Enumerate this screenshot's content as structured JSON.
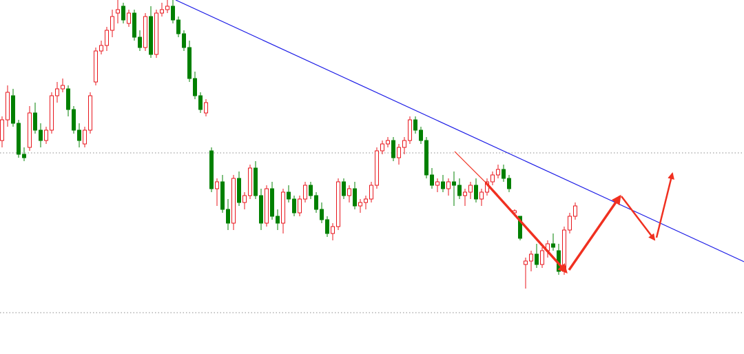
{
  "chart_data": {
    "type": "candlestick",
    "ylim": [
      0,
      514
    ],
    "up_color": "#e8141b",
    "down_color": "#008000",
    "hlines": [
      292,
      60
    ],
    "candles": [
      [
        310,
        345,
        300,
        340
      ],
      [
        340,
        390,
        330,
        380
      ],
      [
        375,
        385,
        330,
        335
      ],
      [
        335,
        340,
        285,
        290
      ],
      [
        290,
        300,
        280,
        285
      ],
      [
        300,
        360,
        295,
        350
      ],
      [
        350,
        365,
        320,
        325
      ],
      [
        325,
        335,
        300,
        310
      ],
      [
        310,
        330,
        305,
        325
      ],
      [
        325,
        380,
        320,
        375
      ],
      [
        375,
        395,
        365,
        385
      ],
      [
        385,
        400,
        380,
        390
      ],
      [
        385,
        390,
        345,
        355
      ],
      [
        355,
        360,
        320,
        325
      ],
      [
        325,
        335,
        300,
        310
      ],
      [
        305,
        330,
        300,
        325
      ],
      [
        325,
        380,
        320,
        375
      ],
      [
        395,
        445,
        390,
        440
      ],
      [
        440,
        455,
        435,
        448
      ],
      [
        448,
        475,
        440,
        470
      ],
      [
        470,
        500,
        460,
        490
      ],
      [
        495,
        514,
        480,
        500
      ],
      [
        505,
        510,
        480,
        485
      ],
      [
        480,
        500,
        475,
        495
      ],
      [
        495,
        500,
        455,
        460
      ],
      [
        460,
        470,
        440,
        445
      ],
      [
        445,
        495,
        440,
        490
      ],
      [
        490,
        505,
        430,
        435
      ],
      [
        435,
        500,
        430,
        495
      ],
      [
        495,
        510,
        490,
        500
      ],
      [
        500,
        514,
        495,
        505
      ],
      [
        505,
        514,
        480,
        485
      ],
      [
        485,
        490,
        460,
        465
      ],
      [
        465,
        470,
        440,
        445
      ],
      [
        445,
        455,
        395,
        400
      ],
      [
        400,
        410,
        370,
        375
      ],
      [
        375,
        380,
        350,
        355
      ],
      [
        350,
        370,
        345,
        365
      ],
      [
        295,
        300,
        235,
        240
      ],
      [
        240,
        255,
        215,
        250
      ],
      [
        250,
        260,
        205,
        210
      ],
      [
        210,
        225,
        180,
        190
      ],
      [
        190,
        260,
        180,
        255
      ],
      [
        255,
        265,
        215,
        220
      ],
      [
        220,
        235,
        210,
        230
      ],
      [
        230,
        275,
        225,
        270
      ],
      [
        270,
        280,
        225,
        230
      ],
      [
        230,
        240,
        180,
        190
      ],
      [
        190,
        245,
        185,
        240
      ],
      [
        240,
        250,
        195,
        200
      ],
      [
        200,
        210,
        180,
        190
      ],
      [
        190,
        240,
        175,
        235
      ],
      [
        235,
        245,
        220,
        225
      ],
      [
        225,
        230,
        200,
        205
      ],
      [
        205,
        230,
        200,
        225
      ],
      [
        225,
        250,
        220,
        245
      ],
      [
        245,
        250,
        225,
        230
      ],
      [
        230,
        235,
        205,
        210
      ],
      [
        210,
        220,
        190,
        195
      ],
      [
        195,
        200,
        170,
        175
      ],
      [
        175,
        190,
        165,
        185
      ],
      [
        185,
        255,
        180,
        250
      ],
      [
        250,
        255,
        225,
        230
      ],
      [
        230,
        245,
        220,
        240
      ],
      [
        240,
        250,
        210,
        215
      ],
      [
        215,
        225,
        205,
        220
      ],
      [
        220,
        230,
        210,
        225
      ],
      [
        225,
        250,
        220,
        245
      ],
      [
        245,
        300,
        240,
        295
      ],
      [
        295,
        310,
        290,
        305
      ],
      [
        305,
        315,
        300,
        310
      ],
      [
        310,
        315,
        280,
        285
      ],
      [
        285,
        305,
        275,
        300
      ],
      [
        300,
        315,
        290,
        310
      ],
      [
        310,
        345,
        305,
        340
      ],
      [
        340,
        345,
        320,
        325
      ],
      [
        325,
        330,
        305,
        310
      ],
      [
        310,
        315,
        255,
        260
      ],
      [
        260,
        270,
        240,
        245
      ],
      [
        245,
        255,
        235,
        250
      ],
      [
        250,
        260,
        235,
        240
      ],
      [
        240,
        255,
        230,
        250
      ],
      [
        250,
        265,
        215,
        245
      ],
      [
        245,
        255,
        225,
        230
      ],
      [
        230,
        240,
        215,
        235
      ],
      [
        235,
        250,
        225,
        245
      ],
      [
        245,
        255,
        220,
        225
      ],
      [
        225,
        240,
        215,
        235
      ],
      [
        235,
        255,
        230,
        250
      ],
      [
        250,
        265,
        245,
        260
      ],
      [
        260,
        275,
        255,
        268
      ],
      [
        268,
        275,
        250,
        255
      ],
      [
        255,
        260,
        235,
        240
      ],
      [
        205,
        210,
        200,
        208
      ],
      [
        200,
        200,
        165,
        168
      ],
      [
        130,
        140,
        95,
        135
      ],
      [
        135,
        150,
        120,
        145
      ],
      [
        145,
        160,
        125,
        130
      ],
      [
        130,
        155,
        125,
        150
      ],
      [
        150,
        165,
        140,
        160
      ],
      [
        160,
        175,
        150,
        155
      ],
      [
        150,
        160,
        115,
        120
      ],
      [
        120,
        185,
        115,
        180
      ],
      [
        180,
        205,
        175,
        200
      ],
      [
        200,
        220,
        195,
        215
      ]
    ]
  }
}
